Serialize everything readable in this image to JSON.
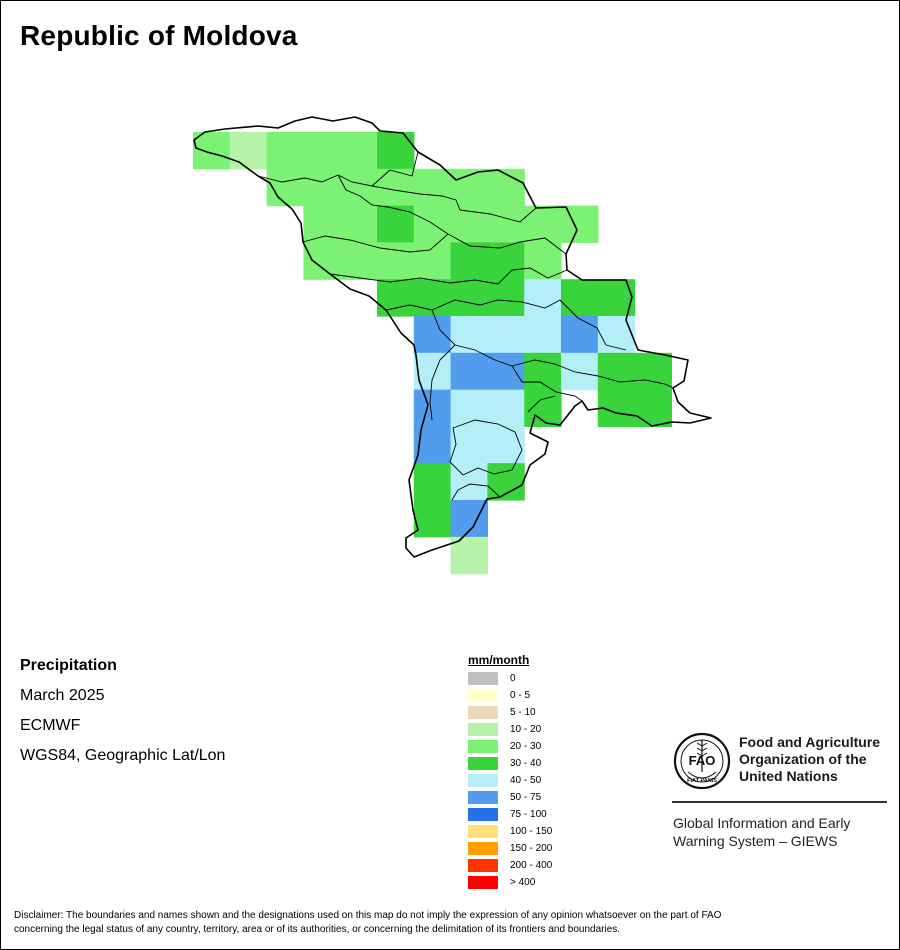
{
  "title": "Republic of Moldova",
  "info": {
    "variable": "Precipitation",
    "period": "March 2025",
    "source": "ECMWF",
    "projection": "WGS84, Geographic Lat/Lon"
  },
  "legend": {
    "unit": "mm/month",
    "classes": [
      {
        "label": "0",
        "color": "#c0c0c0"
      },
      {
        "label": "0 - 5",
        "color": "#ffffc8"
      },
      {
        "label": "5 - 10",
        "color": "#ead9b9"
      },
      {
        "label": "10 - 20",
        "color": "#b6f2a8"
      },
      {
        "label": "20 - 30",
        "color": "#7cf274"
      },
      {
        "label": "30 - 40",
        "color": "#39d33c"
      },
      {
        "label": "40 - 50",
        "color": "#b4eef9"
      },
      {
        "label": "50 - 75",
        "color": "#519cec"
      },
      {
        "label": "75 - 100",
        "color": "#2470e8"
      },
      {
        "label": "100 - 150",
        "color": "#ffe07a"
      },
      {
        "label": "150 - 200",
        "color": "#ff9f00"
      },
      {
        "label": "200 - 400",
        "color": "#ff3300"
      },
      {
        "label": "> 400",
        "color": "#ff0000"
      }
    ]
  },
  "grid": [
    {
      "row": 0,
      "col": 0,
      "class": "20 - 30"
    },
    {
      "row": 0,
      "col": 1,
      "class": "10 - 20"
    },
    {
      "row": 0,
      "col": 2,
      "class": "20 - 30"
    },
    {
      "row": 0,
      "col": 3,
      "class": "20 - 30"
    },
    {
      "row": 0,
      "col": 4,
      "class": "20 - 30"
    },
    {
      "row": 0,
      "col": 5,
      "class": "30 - 40"
    },
    {
      "row": 1,
      "col": 2,
      "class": "20 - 30"
    },
    {
      "row": 1,
      "col": 3,
      "class": "20 - 30"
    },
    {
      "row": 1,
      "col": 4,
      "class": "20 - 30"
    },
    {
      "row": 1,
      "col": 5,
      "class": "20 - 30"
    },
    {
      "row": 1,
      "col": 6,
      "class": "20 - 30"
    },
    {
      "row": 1,
      "col": 7,
      "class": "20 - 30"
    },
    {
      "row": 1,
      "col": 8,
      "class": "20 - 30"
    },
    {
      "row": 2,
      "col": 3,
      "class": "20 - 30"
    },
    {
      "row": 2,
      "col": 4,
      "class": "20 - 30"
    },
    {
      "row": 2,
      "col": 5,
      "class": "30 - 40"
    },
    {
      "row": 2,
      "col": 6,
      "class": "20 - 30"
    },
    {
      "row": 2,
      "col": 7,
      "class": "20 - 30"
    },
    {
      "row": 2,
      "col": 8,
      "class": "20 - 30"
    },
    {
      "row": 2,
      "col": 9,
      "class": "20 - 30"
    },
    {
      "row": 2,
      "col": 10,
      "class": "20 - 30"
    },
    {
      "row": 3,
      "col": 3,
      "class": "20 - 30"
    },
    {
      "row": 3,
      "col": 4,
      "class": "20 - 30"
    },
    {
      "row": 3,
      "col": 5,
      "class": "20 - 30"
    },
    {
      "row": 3,
      "col": 6,
      "class": "20 - 30"
    },
    {
      "row": 3,
      "col": 7,
      "class": "30 - 40"
    },
    {
      "row": 3,
      "col": 8,
      "class": "30 - 40"
    },
    {
      "row": 3,
      "col": 9,
      "class": "20 - 30"
    },
    {
      "row": 4,
      "col": 5,
      "class": "30 - 40"
    },
    {
      "row": 4,
      "col": 6,
      "class": "30 - 40"
    },
    {
      "row": 4,
      "col": 7,
      "class": "30 - 40"
    },
    {
      "row": 4,
      "col": 8,
      "class": "30 - 40"
    },
    {
      "row": 4,
      "col": 9,
      "class": "40 - 50"
    },
    {
      "row": 4,
      "col": 10,
      "class": "30 - 40"
    },
    {
      "row": 4,
      "col": 11,
      "class": "30 - 40"
    },
    {
      "row": 5,
      "col": 6,
      "class": "50 - 75"
    },
    {
      "row": 5,
      "col": 7,
      "class": "40 - 50"
    },
    {
      "row": 5,
      "col": 8,
      "class": "40 - 50"
    },
    {
      "row": 5,
      "col": 9,
      "class": "40 - 50"
    },
    {
      "row": 5,
      "col": 10,
      "class": "50 - 75"
    },
    {
      "row": 5,
      "col": 11,
      "class": "40 - 50"
    },
    {
      "row": 6,
      "col": 6,
      "class": "40 - 50"
    },
    {
      "row": 6,
      "col": 7,
      "class": "50 - 75"
    },
    {
      "row": 6,
      "col": 8,
      "class": "50 - 75"
    },
    {
      "row": 6,
      "col": 9,
      "class": "30 - 40"
    },
    {
      "row": 6,
      "col": 10,
      "class": "40 - 50"
    },
    {
      "row": 6,
      "col": 11,
      "class": "30 - 40"
    },
    {
      "row": 6,
      "col": 12,
      "class": "30 - 40"
    },
    {
      "row": 7,
      "col": 6,
      "class": "50 - 75"
    },
    {
      "row": 7,
      "col": 7,
      "class": "40 - 50"
    },
    {
      "row": 7,
      "col": 8,
      "class": "40 - 50"
    },
    {
      "row": 7,
      "col": 9,
      "class": "30 - 40"
    },
    {
      "row": 7,
      "col": 11,
      "class": "30 - 40"
    },
    {
      "row": 7,
      "col": 12,
      "class": "30 - 40"
    },
    {
      "row": 8,
      "col": 6,
      "class": "50 - 75"
    },
    {
      "row": 8,
      "col": 7,
      "class": "40 - 50"
    },
    {
      "row": 8,
      "col": 8,
      "class": "40 - 50"
    },
    {
      "row": 9,
      "col": 6,
      "class": "30 - 40"
    },
    {
      "row": 9,
      "col": 7,
      "class": "40 - 50"
    },
    {
      "row": 9,
      "col": 8,
      "class": "30 - 40"
    },
    {
      "row": 10,
      "col": 6,
      "class": "30 - 40"
    },
    {
      "row": 10,
      "col": 7,
      "class": "50 - 75"
    },
    {
      "row": 11,
      "col": 7,
      "class": "10 - 20"
    }
  ],
  "logo": {
    "org_line1": "Food and Agriculture",
    "org_line2": "Organization of the",
    "org_line3": "United Nations",
    "logo_letters": "FAO",
    "logo_motto": "FIAT PANIS",
    "system_line1": "Global Information and Early",
    "system_line2": "Warning System – GIEWS"
  },
  "disclaimer_line1": "Disclaimer: The boundaries and names shown and the designations used on this map do not imply the expression of any opinion whatsoever on the part of FAO",
  "disclaimer_line2": "concerning the legal status of any country, territory, area or of its authorities, or concerning the delimitation of its frontiers and boundaries."
}
